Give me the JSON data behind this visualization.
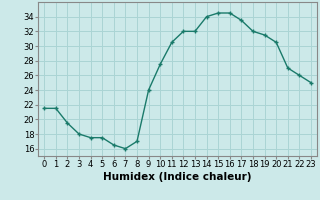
{
  "x": [
    0,
    1,
    2,
    3,
    4,
    5,
    6,
    7,
    8,
    9,
    10,
    11,
    12,
    13,
    14,
    15,
    16,
    17,
    18,
    19,
    20,
    21,
    22,
    23
  ],
  "y": [
    21.5,
    21.5,
    19.5,
    18.0,
    17.5,
    17.5,
    16.5,
    16.0,
    17.0,
    24.0,
    27.5,
    30.5,
    32.0,
    32.0,
    34.0,
    34.5,
    34.5,
    33.5,
    32.0,
    31.5,
    30.5,
    27.0,
    26.0,
    25.0
  ],
  "line_color": "#1a7a6a",
  "marker": "+",
  "marker_size": 3,
  "marker_linewidth": 1.0,
  "line_width": 1.0,
  "bg_color": "#cce9e9",
  "grid_color": "#aad4d4",
  "xlabel": "Humidex (Indice chaleur)",
  "ylim": [
    15,
    36
  ],
  "xlim": [
    -0.5,
    23.5
  ],
  "yticks": [
    16,
    18,
    20,
    22,
    24,
    26,
    28,
    30,
    32,
    34
  ],
  "xticks": [
    0,
    1,
    2,
    3,
    4,
    5,
    6,
    7,
    8,
    9,
    10,
    11,
    12,
    13,
    14,
    15,
    16,
    17,
    18,
    19,
    20,
    21,
    22,
    23
  ],
  "xtick_labels": [
    "0",
    "1",
    "2",
    "3",
    "4",
    "5",
    "6",
    "7",
    "8",
    "9",
    "10",
    "11",
    "12",
    "13",
    "14",
    "15",
    "16",
    "17",
    "18",
    "19",
    "20",
    "21",
    "22",
    "23"
  ],
  "label_fontsize": 7.5,
  "tick_fontsize": 6
}
